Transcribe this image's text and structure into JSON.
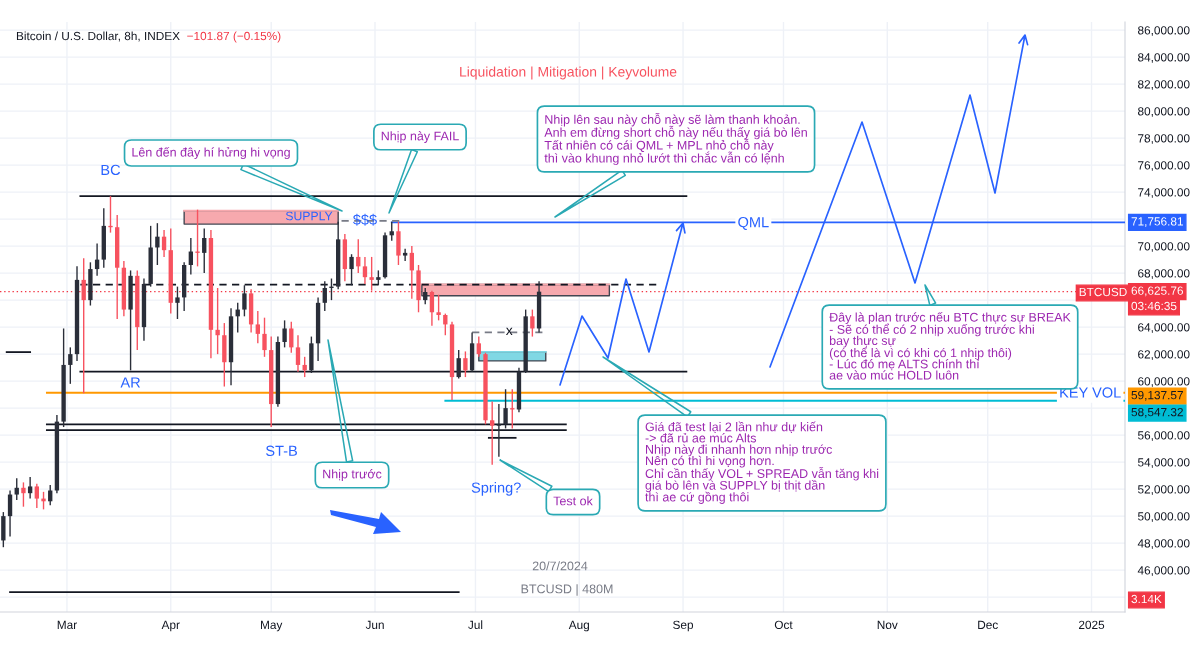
{
  "chart_data": {
    "type": "candlestick",
    "title": "Bitcoin / U.S. Dollar, 8h, INDEX",
    "subtitle": "Liquidation | Mitigation | Keyvolume",
    "x": [
      "2024-02-11",
      "2024-02-13",
      "2024-02-15",
      "2024-02-17",
      "2024-02-19",
      "2024-02-21",
      "2024-02-23",
      "2024-02-25",
      "2024-02-27",
      "2024-02-29",
      "2024-03-02",
      "2024-03-04",
      "2024-03-06",
      "2024-03-08",
      "2024-03-10",
      "2024-03-12",
      "2024-03-14",
      "2024-03-16",
      "2024-03-18",
      "2024-03-20",
      "2024-03-22",
      "2024-03-24",
      "2024-03-26",
      "2024-03-28",
      "2024-03-30",
      "2024-04-01",
      "2024-04-03",
      "2024-04-05",
      "2024-04-07",
      "2024-04-09",
      "2024-04-11",
      "2024-04-13",
      "2024-04-15",
      "2024-04-17",
      "2024-04-19",
      "2024-04-21",
      "2024-04-23",
      "2024-04-25",
      "2024-04-27",
      "2024-04-29",
      "2024-05-01",
      "2024-05-03",
      "2024-05-05",
      "2024-05-07",
      "2024-05-09",
      "2024-05-11",
      "2024-05-13",
      "2024-05-15",
      "2024-05-17",
      "2024-05-19",
      "2024-05-21",
      "2024-05-23",
      "2024-05-25",
      "2024-05-27",
      "2024-05-29",
      "2024-05-31",
      "2024-06-02",
      "2024-06-04",
      "2024-06-06",
      "2024-06-08",
      "2024-06-10",
      "2024-06-12",
      "2024-06-14",
      "2024-06-16",
      "2024-06-18",
      "2024-06-20",
      "2024-06-22",
      "2024-06-24",
      "2024-06-26",
      "2024-06-28",
      "2024-06-30",
      "2024-07-02",
      "2024-07-04",
      "2024-07-06",
      "2024-07-08",
      "2024-07-10",
      "2024-07-12",
      "2024-07-14",
      "2024-07-16",
      "2024-07-18",
      "2024-07-20"
    ],
    "ohlc": [
      [
        48200,
        50300,
        47700,
        50000
      ],
      [
        50000,
        51900,
        48500,
        51600
      ],
      [
        51600,
        52800,
        51200,
        52100
      ],
      [
        52100,
        52500,
        50700,
        51700
      ],
      [
        51700,
        52900,
        51300,
        52200
      ],
      [
        52200,
        52400,
        50600,
        51300
      ],
      [
        51300,
        51800,
        50500,
        51100
      ],
      [
        51100,
        52300,
        50800,
        51900
      ],
      [
        51900,
        57500,
        51700,
        57000
      ],
      [
        57000,
        63900,
        56600,
        61200
      ],
      [
        61200,
        62500,
        59800,
        62000
      ],
      [
        62000,
        68500,
        61500,
        67500
      ],
      [
        67500,
        69100,
        59100,
        66000
      ],
      [
        66000,
        68800,
        65600,
        68300
      ],
      [
        68300,
        70200,
        67800,
        69000
      ],
      [
        69000,
        72800,
        68400,
        71500
      ],
      [
        71500,
        73700,
        71000,
        71400
      ],
      [
        71400,
        72300,
        64600,
        68400
      ],
      [
        68400,
        68900,
        64800,
        65300
      ],
      [
        65300,
        68200,
        60800,
        67800
      ],
      [
        67800,
        68200,
        62300,
        64000
      ],
      [
        64000,
        67600,
        63000,
        67200
      ],
      [
        67200,
        71500,
        67000,
        69900
      ],
      [
        69900,
        71700,
        68600,
        70700
      ],
      [
        70700,
        71200,
        69200,
        69700
      ],
      [
        69700,
        71300,
        65000,
        65800
      ],
      [
        65800,
        67000,
        64600,
        66200
      ],
      [
        66200,
        68800,
        65200,
        68600
      ],
      [
        68600,
        70600,
        67900,
        69600
      ],
      [
        69600,
        72700,
        68500,
        69500
      ],
      [
        69500,
        71300,
        68000,
        70600
      ],
      [
        70600,
        71200,
        61700,
        63800
      ],
      [
        63800,
        66900,
        62000,
        63400
      ],
      [
        63400,
        64300,
        59600,
        61400
      ],
      [
        61400,
        65400,
        59700,
        64800
      ],
      [
        64800,
        65800,
        63600,
        65300
      ],
      [
        65300,
        67100,
        64800,
        66500
      ],
      [
        66500,
        66800,
        63600,
        64200
      ],
      [
        64200,
        65200,
        62800,
        63500
      ],
      [
        63500,
        64700,
        61800,
        62300
      ],
      [
        62300,
        63300,
        56600,
        58300
      ],
      [
        58300,
        63300,
        58100,
        62900
      ],
      [
        62900,
        64500,
        62500,
        63900
      ],
      [
        63900,
        64400,
        62100,
        62500
      ],
      [
        62500,
        63400,
        60700,
        61200
      ],
      [
        61200,
        61800,
        60300,
        60800
      ],
      [
        60800,
        63300,
        60600,
        62800
      ],
      [
        62800,
        66200,
        61500,
        65800
      ],
      [
        65800,
        67400,
        65200,
        66900
      ],
      [
        66900,
        67600,
        66000,
        67000
      ],
      [
        67000,
        71800,
        66800,
        70500
      ],
      [
        70500,
        70900,
        67400,
        68300
      ],
      [
        68300,
        69400,
        67100,
        69200
      ],
      [
        69200,
        70500,
        68000,
        68500
      ],
      [
        68500,
        69200,
        67200,
        67700
      ],
      [
        67700,
        69200,
        66700,
        67500
      ],
      [
        67500,
        68200,
        67100,
        67700
      ],
      [
        67700,
        71000,
        67600,
        70800
      ],
      [
        70800,
        71800,
        70400,
        71100
      ],
      [
        71100,
        71800,
        68600,
        69300
      ],
      [
        69300,
        69800,
        68900,
        69500
      ],
      [
        69500,
        70000,
        66100,
        68200
      ],
      [
        68200,
        68600,
        65100,
        66000
      ],
      [
        66000,
        66900,
        65700,
        66600
      ],
      [
        66600,
        66700,
        64100,
        65100
      ],
      [
        65100,
        66400,
        64500,
        64900
      ],
      [
        64900,
        65000,
        63400,
        64200
      ],
      [
        64200,
        64400,
        58600,
        60300
      ],
      [
        60300,
        62300,
        60200,
        61700
      ],
      [
        61700,
        62200,
        60300,
        60800
      ],
      [
        60800,
        63600,
        60700,
        62800
      ],
      [
        62800,
        63300,
        61800,
        62000
      ],
      [
        62000,
        62100,
        56800,
        57100
      ],
      [
        57100,
        58500,
        53800,
        56700
      ],
      [
        56700,
        58300,
        54400,
        56800
      ],
      [
        56800,
        59400,
        56500,
        58000
      ],
      [
        58000,
        59400,
        56500,
        57900
      ],
      [
        57900,
        61000,
        57700,
        60700
      ],
      [
        60700,
        65300,
        60600,
        64800
      ],
      [
        64800,
        65300,
        63300,
        63900
      ],
      [
        63900,
        67400,
        63600,
        66625.76
      ]
    ],
    "colors": [
      "#2a2e39",
      "#2a2e39",
      "#2a2e39",
      "#f7525f",
      "#2a2e39",
      "#f7525f",
      "#f7525f",
      "#2a2e39",
      "#2a2e39",
      "#2a2e39",
      "#2a2e39",
      "#2a2e39",
      "#f7525f",
      "#2a2e39",
      "#2a2e39",
      "#2a2e39",
      "#f7525f",
      "#f7525f",
      "#f7525f",
      "#2a2e39",
      "#f7525f",
      "#2a2e39",
      "#2a2e39",
      "#2a2e39",
      "#f7525f",
      "#f7525f",
      "#2a2e39",
      "#2a2e39",
      "#2a2e39",
      "#f7525f",
      "#2a2e39",
      "#f7525f",
      "#f7525f",
      "#f7525f",
      "#2a2e39",
      "#2a2e39",
      "#2a2e39",
      "#f7525f",
      "#f7525f",
      "#f7525f",
      "#f7525f",
      "#2a2e39",
      "#2a2e39",
      "#f7525f",
      "#f7525f",
      "#f7525f",
      "#2a2e39",
      "#2a2e39",
      "#2a2e39",
      "#2a2e39",
      "#2a2e39",
      "#f7525f",
      "#2a2e39",
      "#f7525f",
      "#f7525f",
      "#f7525f",
      "#2a2e39",
      "#2a2e39",
      "#2a2e39",
      "#f7525f",
      "#2a2e39",
      "#f7525f",
      "#f7525f",
      "#2a2e39",
      "#f7525f",
      "#f7525f",
      "#f7525f",
      "#f7525f",
      "#2a2e39",
      "#f7525f",
      "#2a2e39",
      "#f7525f",
      "#f7525f",
      "#f7525f",
      "#2a2e39",
      "#2a2e39",
      "#f7525f",
      "#2a2e39",
      "#2a2e39",
      "#f7525f",
      "#2a2e39"
    ],
    "series": [
      {
        "type": "line",
        "x": [
          "2024-04-05",
          "2024-05-21"
        ],
        "values": [
          72620,
          72620
        ],
        "lower": [
          71630,
          71630
        ],
        "upper": [
          72620,
          72620
        ],
        "color": "#f7a9ae"
      },
      {
        "type": "line",
        "x": [
          "2024-06-15",
          "2024-08-10"
        ],
        "values": [
          67160,
          67160
        ],
        "lower": [
          66320,
          66320
        ],
        "upper": [
          67160,
          67160
        ],
        "color": "#f7a9ae"
      },
      {
        "type": "line",
        "x": [
          "2024-07-02",
          "2024-07-22"
        ],
        "values": [
          62170,
          62170
        ],
        "lower": [
          61500,
          61500
        ],
        "upper": [
          62170,
          62170
        ],
        "color": "#80d8e4"
      },
      {
        "type": "line",
        "x": [
          "2024-02-24",
          "2024-07-28"
        ],
        "values": [
          56800,
          56800
        ],
        "color": "#131722"
      },
      {
        "type": "line",
        "x": [
          "2024-02-24",
          "2024-07-28"
        ],
        "values": [
          56370,
          56370
        ],
        "color": "#131722"
      },
      {
        "type": "line",
        "x": [
          "2024-03-05",
          "2024-09-02"
        ],
        "values": [
          73700,
          73700
        ],
        "color": "#131722"
      },
      {
        "type": "line",
        "x": [
          "2024-03-05",
          "2024-09-02"
        ],
        "values": [
          60700,
          60700
        ],
        "color": "#131722"
      },
      {
        "type": "line",
        "x": [
          "2024-03-05",
          "2024-08-24"
        ],
        "values": [
          67150,
          67150
        ],
        "color": "#131722",
        "line_style": "dashed"
      },
      {
        "type": "line",
        "x": [
          "2024-02-24",
          "2025-01-11"
        ],
        "values": [
          59137.57,
          59137.57
        ],
        "color": "#ff9800",
        "value_labels": [
          null,
          "59,137.57"
        ]
      },
      {
        "type": "line",
        "x": [
          "2024-06-06",
          "2025-01-11"
        ],
        "values": [
          71756.81,
          71756.81
        ],
        "color": "#2962ff",
        "value_labels": [
          null,
          "71,756.81"
        ]
      },
      {
        "type": "line",
        "x": [
          "2024-06-22",
          "2025-01-11"
        ],
        "values": [
          58547.32,
          58547.32
        ],
        "color": "#00bcd4",
        "value_labels": [
          null,
          "58,547.32"
        ]
      },
      {
        "type": "line",
        "x": [
          "2024-05-22",
          "2024-06-09"
        ],
        "values": [
          71870,
          71870
        ],
        "color": "#787b86",
        "line_style": "dashed"
      },
      {
        "type": "line",
        "x": [
          "2024-06-30",
          "2024-07-21"
        ],
        "values": [
          63610,
          63610
        ],
        "color": "#787b86",
        "line_style": "dashed"
      },
      {
        "type": "line",
        "x": [
          "2024-02-12",
          "2024-02-19"
        ],
        "values": [
          62150,
          62150
        ],
        "color": "#131722"
      },
      {
        "type": "line",
        "x": [
          "2024-02-13",
          "2024-06-26"
        ],
        "values": [
          44370,
          44370
        ],
        "color": "#131722"
      },
      {
        "type": "line",
        "x": [
          "2024-07-05",
          "2024-07-13"
        ],
        "values": [
          55800,
          55800
        ],
        "color": "#131722"
      }
    ],
    "ref_lines": [
      {
        "axis": "y",
        "value": 66625.76,
        "label": "66,625.76",
        "color": "#f23645",
        "line_style": "dotted"
      }
    ],
    "annotations": [
      "−101.87 (−0.15%)",
      {
        "text": "BC",
        "x": "2024-03-14",
        "y": 73700
      },
      {
        "text": "AR",
        "x": "2024-03-20",
        "y": 60700
      },
      {
        "text": "ST-B",
        "x": "2024-05-02",
        "y": 56600
      },
      {
        "text": "Spring?",
        "x": "2024-07-06",
        "y": 53800
      },
      "SUPPLY",
      {
        "text": "$$$",
        "x": "2024-05-29",
        "y": 71870
      },
      {
        "text": "QML",
        "x": "2024-09-22",
        "y": 71756.81
      },
      {
        "text": "KEY VOL",
        "x": "2024-12-31",
        "y": 59137.57
      },
      {
        "text": "x",
        "x": "2024-07-12",
        "y": 63610
      },
      "Lên đến đây hí hửng hi vọng",
      "Nhịp này FAIL",
      "Nhịp lên sau này chỗ này sẽ làm thanh khoản.\nAnh em đừng short chỗ này nếu thấy giá bò lên\nTất nhiên có cái QML + MPL nhỏ chỗ này\nthì vào khung nhỏ lướt thì chắc vẫn có lệnh",
      "Nhịp trước",
      "Test ok",
      "Giá đã test lại 2 lần như dự kiến\n-> đã rủ ae múc Alts\nNhịp này đi nhanh hơn nhịp trước\nNên có thì hi vọng hơn.\nChỉ cần thấy VOL + SPREAD vẫn tăng khi\ngiá bò lên và SUPPLY bị thịt dần\nthì ae cứ gồng thôi",
      "Đây là plan trước nếu BTC thực sự BREAK\n- Sẽ có thể có 2 nhịp xuống trước khi\nbay thực sự\n(có thể là vì có khi có 1 nhịp thôi)\n- Lúc đó mẹ ALTS chính thì\nae vào múc HOLD luôn",
      "20/7/2024",
      "BTCUSD | 480M",
      "BTCUSD",
      "03:46:35",
      "3.14K"
    ],
    "xlim": [
      "2024-02-10",
      "2025-01-11"
    ],
    "xticks": [
      {
        "value": "2024-03-01",
        "label": "Mar"
      },
      {
        "value": "2024-04-01",
        "label": "Apr"
      },
      {
        "value": "2024-05-01",
        "label": "May"
      },
      {
        "value": "2024-06-01",
        "label": "Jun"
      },
      {
        "value": "2024-07-01",
        "label": "Jul"
      },
      {
        "value": "2024-08-01",
        "label": "Aug"
      },
      {
        "value": "2024-09-01",
        "label": "Sep"
      },
      {
        "value": "2024-10-01",
        "label": "Oct"
      },
      {
        "value": "2024-11-01",
        "label": "Nov"
      },
      {
        "value": "2024-12-01",
        "label": "Dec"
      },
      {
        "value": "2025-01-01",
        "label": "2025"
      }
    ],
    "ylim": [
      42900,
      86600
    ],
    "yticks": [
      {
        "value": 44000,
        "label": null
      },
      {
        "value": 46000,
        "label": "46,000.00"
      },
      {
        "value": 48000,
        "label": "48,000.00"
      },
      {
        "value": 50000,
        "label": "50,000.00"
      },
      {
        "value": 52000,
        "label": "52,000.00"
      },
      {
        "value": 54000,
        "label": "54,000.00"
      },
      {
        "value": 56000,
        "label": "56,000.00"
      },
      {
        "value": 58000,
        "label": null
      },
      {
        "value": 60000,
        "label": "60,000.00"
      },
      {
        "value": 62000,
        "label": "62,000.00"
      },
      {
        "value": 64000,
        "label": "64,000.00"
      },
      {
        "value": 66000,
        "label": null
      },
      {
        "value": 68000,
        "label": "68,000.00"
      },
      {
        "value": 70000,
        "label": "70,000.00"
      },
      {
        "value": 72000,
        "label": null
      },
      {
        "value": 74000,
        "label": "74,000.00"
      },
      {
        "value": 76000,
        "label": "76,000.00"
      },
      {
        "value": 78000,
        "label": "78,000.00"
      },
      {
        "value": 80000,
        "label": "80,000.00"
      },
      {
        "value": 82000,
        "label": "82,000.00"
      },
      {
        "value": 84000,
        "label": "84,000.00"
      },
      {
        "value": 86000,
        "label": "86,000.00"
      }
    ],
    "grid": true
  }
}
